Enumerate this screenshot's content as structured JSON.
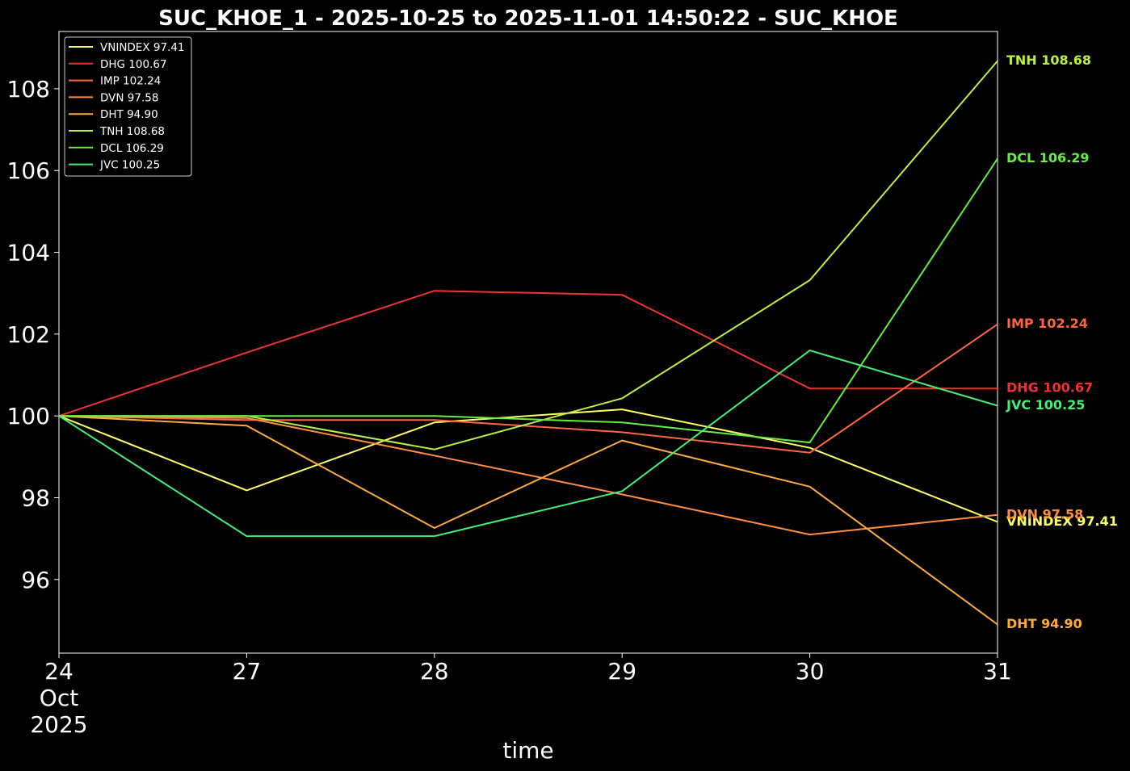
{
  "chart_data": {
    "type": "line",
    "title": "SUC_KHOE_1 - 2025-10-25 to 2025-11-01 14:50:22 - SUC_KHOE",
    "xlabel": "time",
    "ylabel": "",
    "x": [
      "2025-10-24",
      "2025-10-27",
      "2025-10-28",
      "2025-10-29",
      "2025-10-30",
      "2025-10-31"
    ],
    "x_tick_labels": [
      [
        "24",
        "Oct",
        "2025"
      ],
      [
        "27"
      ],
      [
        "28"
      ],
      [
        "29"
      ],
      [
        "30"
      ],
      [
        "31"
      ]
    ],
    "ylim": [
      94.2,
      109.4
    ],
    "y_ticks": [
      96,
      98,
      100,
      102,
      104,
      106,
      108
    ],
    "grid": false,
    "legend_position": "top-left",
    "background": "#000000",
    "series": [
      {
        "name": "VNINDEX",
        "last": "97.41",
        "label": "VNINDEX 97.41",
        "color": "#ffff66",
        "values": [
          100,
          98.18,
          99.84,
          100.16,
          99.22,
          97.41
        ]
      },
      {
        "name": "DHG",
        "last": "100.67",
        "label": "DHG 100.67",
        "color": "#ee3333",
        "values": [
          100,
          101.55,
          103.06,
          102.96,
          100.67,
          100.67
        ]
      },
      {
        "name": "IMP",
        "last": "102.24",
        "label": "IMP 102.24",
        "color": "#ff6640",
        "values": [
          100,
          99.9,
          99.9,
          99.6,
          99.1,
          102.24
        ]
      },
      {
        "name": "DVN",
        "last": "97.58",
        "label": "DVN 97.58",
        "color": "#ff8f40",
        "values": [
          100,
          99.95,
          99.03,
          98.08,
          97.1,
          97.58
        ]
      },
      {
        "name": "DHT",
        "last": "94.90",
        "label": "DHT 94.90",
        "color": "#ffaa40",
        "values": [
          100,
          99.76,
          97.26,
          99.4,
          98.27,
          94.9
        ]
      },
      {
        "name": "TNH",
        "last": "108.68",
        "label": "TNH 108.68",
        "color": "#bbee44",
        "values": [
          100,
          100,
          99.18,
          100.43,
          103.32,
          108.68
        ]
      },
      {
        "name": "DCL",
        "last": "106.29",
        "label": "DCL 106.29",
        "color": "#66ee44",
        "values": [
          100,
          100,
          100,
          99.84,
          99.35,
          106.29
        ]
      },
      {
        "name": "JVC",
        "last": "100.25",
        "label": "JVC 100.25",
        "color": "#44ee77",
        "values": [
          100,
          97.06,
          97.06,
          98.16,
          101.6,
          100.25
        ]
      }
    ]
  }
}
